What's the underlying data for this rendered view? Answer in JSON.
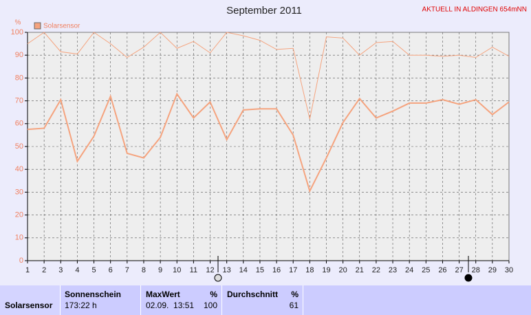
{
  "chart_data": {
    "type": "line",
    "title": "September 2011",
    "annotation": "AKTUELL IN ALDINGEN 654mNN",
    "y_label": "%",
    "x": [
      1,
      2,
      3,
      4,
      5,
      6,
      7,
      8,
      9,
      10,
      11,
      12,
      13,
      14,
      15,
      16,
      17,
      18,
      19,
      20,
      21,
      22,
      23,
      24,
      25,
      26,
      27,
      28,
      29,
      30
    ],
    "xlim": [
      1,
      30
    ],
    "xticks": [
      1,
      2,
      3,
      4,
      5,
      6,
      7,
      8,
      9,
      10,
      11,
      12,
      13,
      14,
      15,
      16,
      17,
      18,
      19,
      20,
      21,
      22,
      23,
      24,
      25,
      26,
      27,
      28,
      29,
      30
    ],
    "ylim": [
      0,
      100
    ],
    "yticks": [
      0,
      10,
      20,
      30,
      40,
      50,
      60,
      70,
      80,
      90,
      100
    ],
    "grid": true,
    "series": [
      {
        "name": "Solarsensor",
        "color": "#f5a37e",
        "values": [
          57.5,
          58,
          70.5,
          43.5,
          54.5,
          72,
          47,
          45,
          54,
          73,
          62.5,
          69.5,
          53,
          66,
          66.5,
          66.5,
          55,
          30.5,
          45,
          60.5,
          71,
          62.5,
          65.5,
          69,
          69,
          70.5,
          68.5,
          70.5,
          64,
          69.5
        ]
      },
      {
        "color": "#f5a37e",
        "values": [
          95,
          100,
          91.5,
          90.5,
          100,
          95,
          89,
          93.5,
          100,
          93,
          96,
          91,
          100,
          98.5,
          96.5,
          92.5,
          93,
          62,
          98,
          97.5,
          90,
          95.5,
          96,
          90,
          90,
          89.5,
          90,
          89,
          93.5,
          89.5
        ]
      }
    ]
  },
  "table": {
    "row_label": "Solarsensor",
    "sonnenschein": {
      "header": "Sonnenschein",
      "value": "173:22 h"
    },
    "maxwert": {
      "header": "MaxWert",
      "unit": "%",
      "date": "02.09.  13:51",
      "value": "100"
    },
    "durchschnitt": {
      "header": "Durchschnitt",
      "unit": "%",
      "value": "61"
    }
  }
}
